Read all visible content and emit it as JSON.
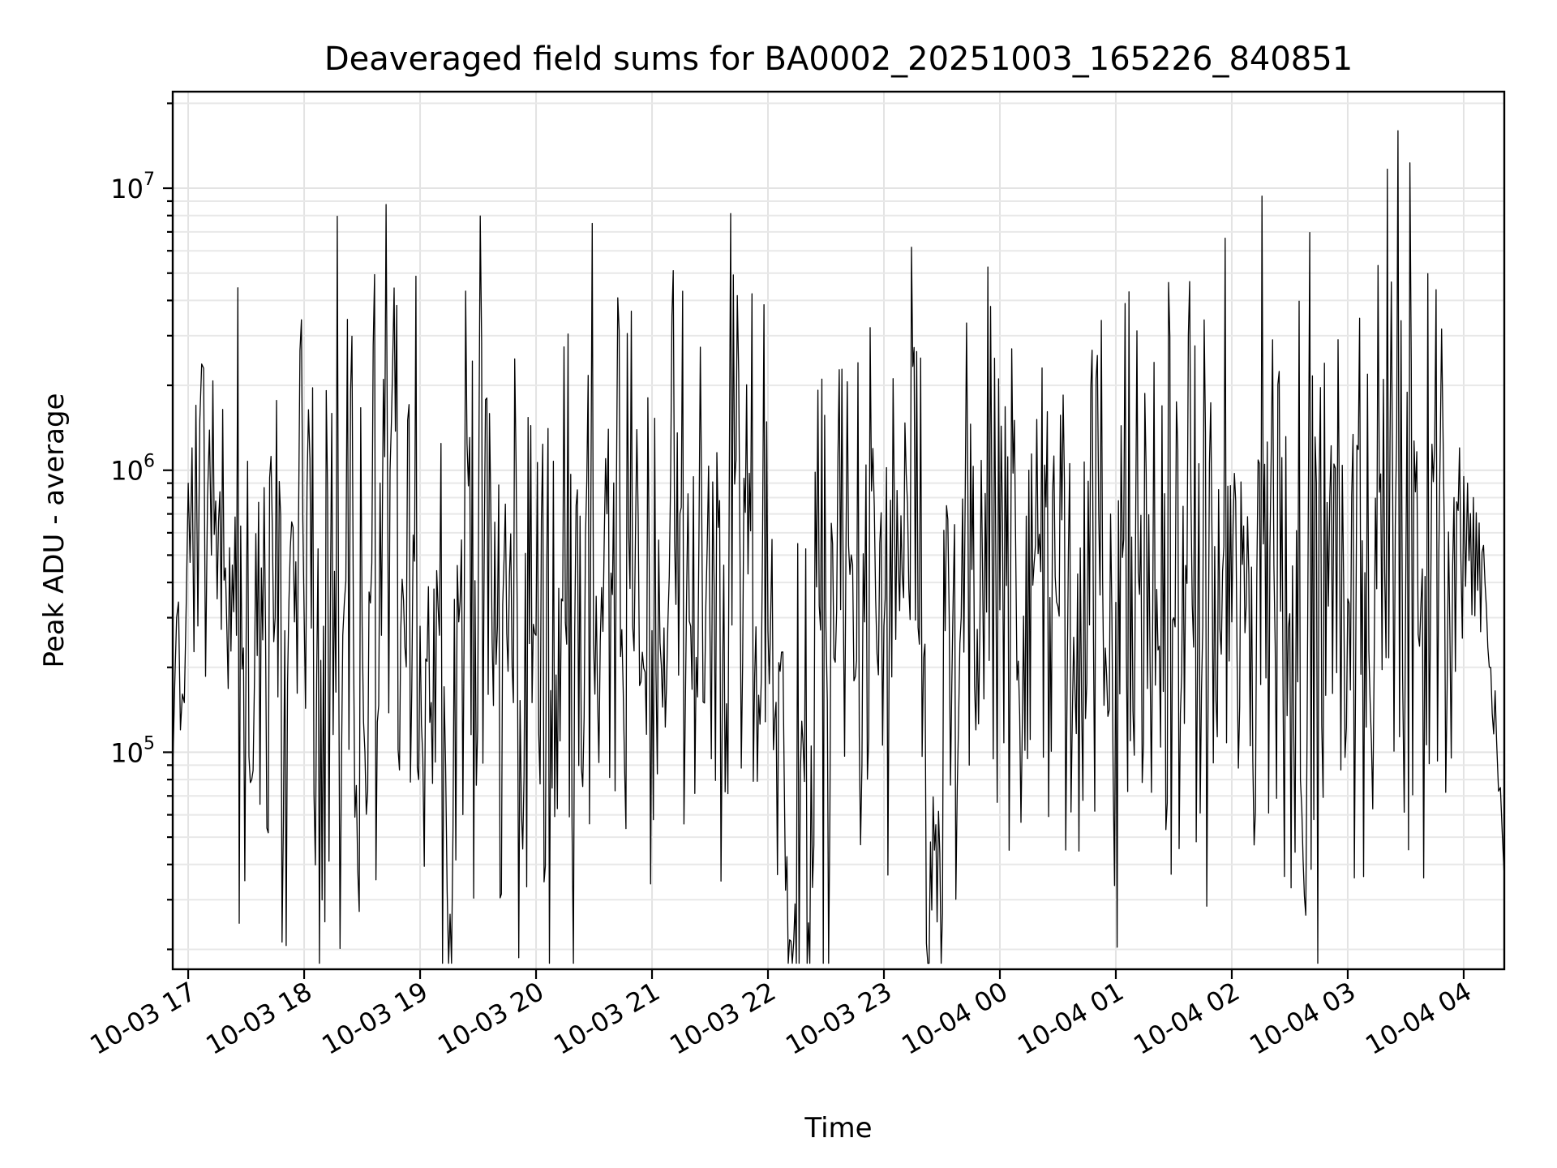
{
  "chart_data": {
    "type": "line",
    "title": "Deaveraged field sums for BA0002_20251003_165226_840851",
    "xlabel": "Time",
    "ylabel": "Peak ADU - average",
    "yscale": "log",
    "ylim": [
      17000,
      22000000
    ],
    "xlim": [
      "2025-10-03 16:52",
      "2025-10-04 04:21"
    ],
    "grid": true,
    "line_color": "#000000",
    "grid_color": "#e3e3e3",
    "x_ticks": [
      {
        "label": "10-03 17",
        "time": "2025-10-03 17:00"
      },
      {
        "label": "10-03 18",
        "time": "2025-10-03 18:00"
      },
      {
        "label": "10-03 19",
        "time": "2025-10-03 19:00"
      },
      {
        "label": "10-03 20",
        "time": "2025-10-03 20:00"
      },
      {
        "label": "10-03 21",
        "time": "2025-10-03 21:00"
      },
      {
        "label": "10-03 22",
        "time": "2025-10-03 22:00"
      },
      {
        "label": "10-03 23",
        "time": "2025-10-03 23:00"
      },
      {
        "label": "10-04 00",
        "time": "2025-10-04 00:00"
      },
      {
        "label": "10-04 01",
        "time": "2025-10-04 01:00"
      },
      {
        "label": "10-04 02",
        "time": "2025-10-04 02:00"
      },
      {
        "label": "10-04 03",
        "time": "2025-10-04 03:00"
      },
      {
        "label": "10-04 04",
        "time": "2025-10-04 04:00"
      }
    ],
    "y_ticks": [
      {
        "base": "10",
        "exp": "5",
        "value": 100000
      },
      {
        "base": "10",
        "exp": "6",
        "value": 1000000
      },
      {
        "base": "10",
        "exp": "7",
        "value": 10000000
      }
    ],
    "series": [
      {
        "x": [
          "2025-10-03 16:52",
          "2025-10-03 16:54",
          "2025-10-03 16:56",
          "2025-10-03 16:58",
          "2025-10-03 17:00",
          "2025-10-03 17:02",
          "2025-10-03 17:04",
          "2025-10-03 17:06",
          "2025-10-03 17:08",
          "2025-10-03 17:10",
          "2025-10-03 17:12",
          "2025-10-03 17:15",
          "2025-10-03 17:20",
          "2025-10-03 17:25",
          "2025-10-03 17:30",
          "2025-10-03 17:40",
          "2025-10-03 17:45",
          "2025-10-03 17:50",
          "2025-10-03 17:55",
          "2025-10-03 18:00",
          "2025-10-03 18:03",
          "2025-10-03 18:10",
          "2025-10-03 18:20",
          "2025-10-03 18:24",
          "2025-10-03 18:30",
          "2025-10-03 18:40",
          "2025-10-03 18:41",
          "2025-10-03 18:50",
          "2025-10-03 19:00",
          "2025-10-03 19:10",
          "2025-10-03 19:14",
          "2025-10-03 19:20",
          "2025-10-03 19:25",
          "2025-10-03 19:40",
          "2025-10-03 20:00",
          "2025-10-03 20:20",
          "2025-10-03 20:36",
          "2025-10-03 20:50",
          "2025-10-03 21:00",
          "2025-10-03 21:11",
          "2025-10-03 21:20",
          "2025-10-03 21:30",
          "2025-10-03 21:40",
          "2025-10-03 22:00",
          "2025-10-03 22:14",
          "2025-10-03 22:30",
          "2025-10-03 22:50",
          "2025-10-03 23:00",
          "2025-10-03 23:19",
          "2025-10-03 23:22",
          "2025-10-03 23:40",
          "2025-10-04 00:00",
          "2025-10-04 00:15",
          "2025-10-04 00:30",
          "2025-10-04 01:00",
          "2025-10-04 01:30",
          "2025-10-04 01:45",
          "2025-10-04 02:00",
          "2025-10-04 02:17",
          "2025-10-04 02:30",
          "2025-10-04 02:50",
          "2025-10-04 03:00",
          "2025-10-04 03:15",
          "2025-10-04 03:26",
          "2025-10-04 03:30",
          "2025-10-04 03:40",
          "2025-10-04 03:50",
          "2025-10-04 03:55",
          "2025-10-04 04:00",
          "2025-10-04 04:02",
          "2025-10-04 04:05",
          "2025-10-04 04:08",
          "2025-10-04 04:11",
          "2025-10-04 04:14",
          "2025-10-04 04:17",
          "2025-10-04 04:19",
          "2025-10-04 04:21"
        ],
        "y": [
          85000,
          300000,
          120000,
          150000,
          900000,
          1200000,
          1700000,
          1500000,
          2300000,
          800000,
          500000,
          350000,
          280000,
          260000,
          270000,
          280000,
          300000,
          270000,
          290000,
          300000,
          1100000,
          280000,
          260000,
          1900000,
          280000,
          260000,
          2100000,
          270000,
          280000,
          260000,
          32000,
          290000,
          880000,
          280000,
          260000,
          270000,
          1100000,
          280000,
          270000,
          5100000,
          280000,
          270000,
          1050000,
          270000,
          29000,
          280000,
          290000,
          280000,
          2500000,
          21000,
          300000,
          320000,
          1000000,
          330000,
          340000,
          300000,
          280000,
          290000,
          1050000,
          310000,
          330000,
          350000,
          380000,
          16000000,
          400000,
          420000,
          600000,
          800000,
          950000,
          900000,
          800000,
          650000,
          400000,
          200000,
          110000,
          75000,
          36000
        ]
      }
    ]
  }
}
